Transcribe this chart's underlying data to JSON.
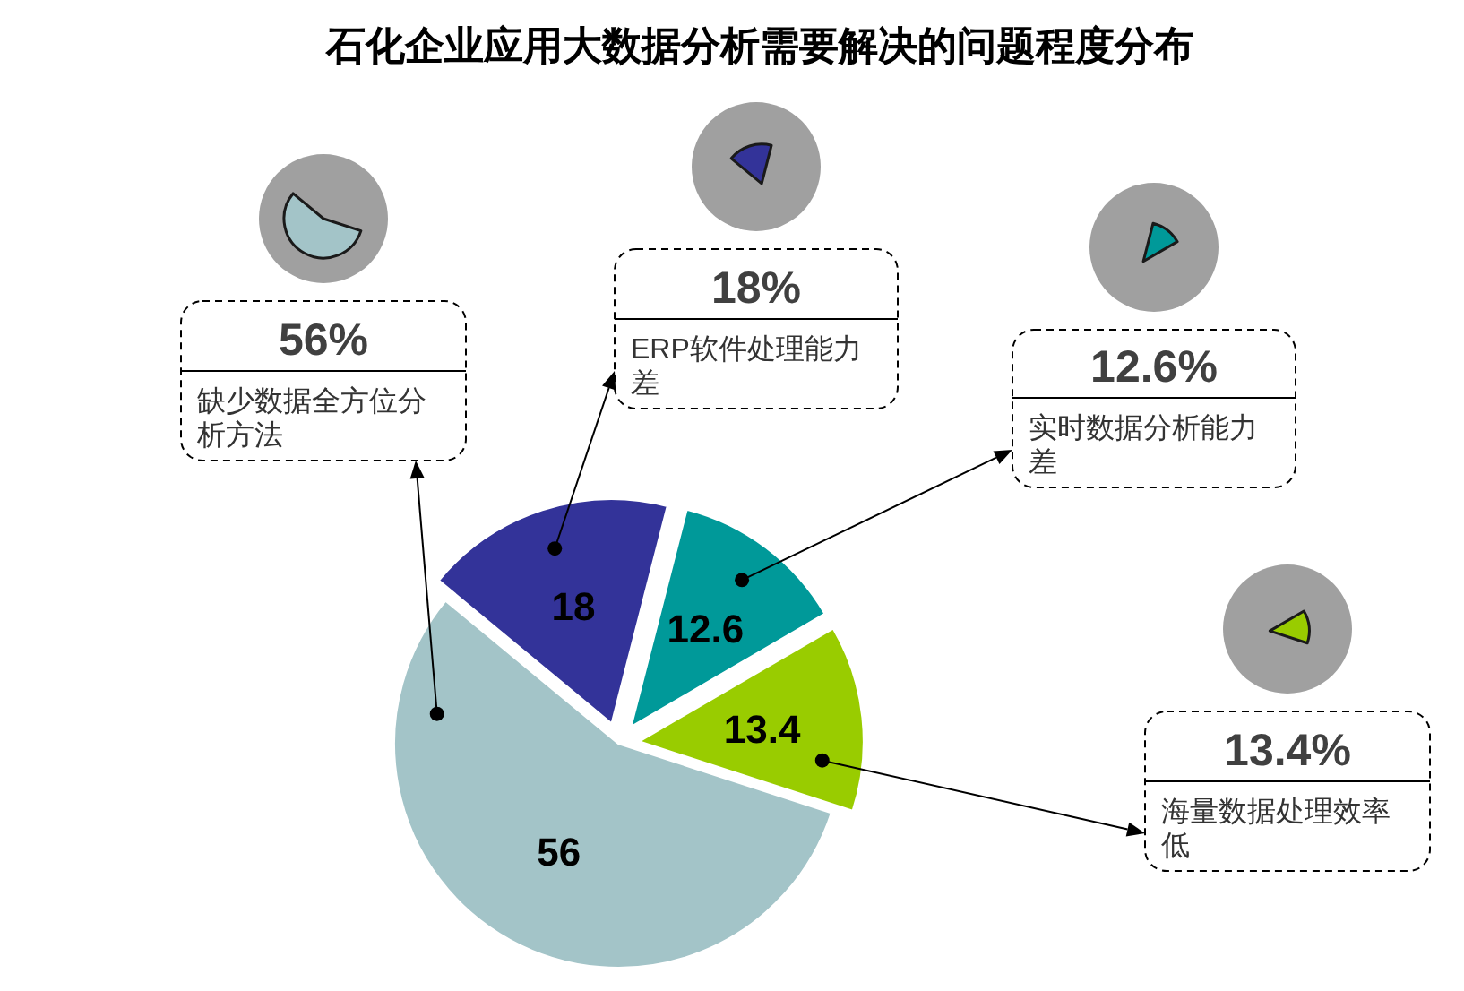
{
  "chart_data": {
    "type": "pie",
    "title": "石化企业应用大数据分析需要解决的问题程度分布",
    "categories": [
      "缺少数据全方位分析方法",
      "ERP软件处理能力差",
      "实时数据分析能力差",
      "海量数据处理效率低"
    ],
    "values": [
      56,
      18,
      12.6,
      13.4
    ],
    "colors": [
      "#a3c4c8",
      "#333399",
      "#009999",
      "#99cc00"
    ],
    "data_labels": true,
    "annotations": [
      "56%",
      "18%",
      "12.6%",
      "13.4%"
    ]
  }
}
